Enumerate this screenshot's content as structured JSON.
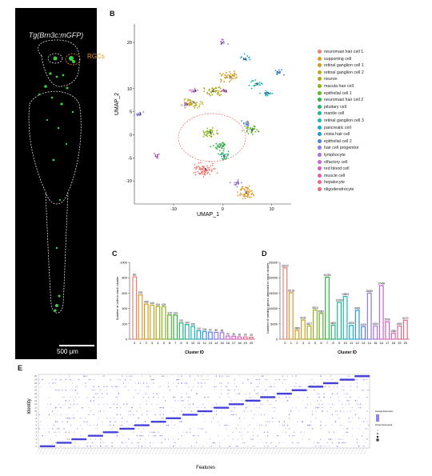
{
  "panel_labels": {
    "a": "A",
    "b": "B",
    "c": "C",
    "d": "D",
    "e": "E"
  },
  "panel_a": {
    "title": "Tg(Brn3c:mGFP)",
    "annotation": "RGCs",
    "scale_bar": "500 μm"
  },
  "chart_data": [
    {
      "type": "scatter",
      "panel": "B",
      "xlabel": "UMAP_1",
      "ylabel": "UMAP_2",
      "xlim": [
        -18,
        14
      ],
      "ylim": [
        -15,
        24
      ],
      "xticks": [
        -10,
        0,
        10
      ],
      "yticks": [
        -10,
        -5,
        0,
        5,
        10,
        20
      ],
      "legend_position": "right",
      "series": [
        {
          "name": "neuromast hair cell 1",
          "color": "#f07f73",
          "cluster_label": "0",
          "center": [
            -3.5,
            -7.5
          ]
        },
        {
          "name": "supporting cell",
          "color": "#e0992a",
          "cluster_label": "1",
          "center": [
            4.8,
            -12.5
          ]
        },
        {
          "name": "retinal ganglion cell 1",
          "color": "#d49a1c",
          "cluster_label": "2",
          "center": [
            1.5,
            12.5
          ]
        },
        {
          "name": "retinal ganglion cell 2",
          "color": "#c4a51e",
          "cluster_label": "3",
          "center": [
            -6.0,
            7.0
          ]
        },
        {
          "name": "neuron",
          "color": "#a9a91a",
          "cluster_label": "4",
          "center": [
            -2.0,
            9.5
          ]
        },
        {
          "name": "macula hair cell",
          "color": "#8ab51d",
          "cluster_label": "5",
          "center": [
            -2.5,
            0.5
          ]
        },
        {
          "name": "epithelial cell 1",
          "color": "#5fb52a",
          "cluster_label": "6",
          "center": [
            6.0,
            1.0
          ]
        },
        {
          "name": "neuromast hair cell 2",
          "color": "#2fb244",
          "cluster_label": "7",
          "center": [
            -0.5,
            -2.5
          ]
        },
        {
          "name": "pituitary cell",
          "color": "#22b56d",
          "cluster_label": "8",
          "center": [
            0.3,
            -4.5
          ]
        },
        {
          "name": "mantle cell",
          "color": "#1eb896",
          "cluster_label": "9",
          "center": [
            7.0,
            11.0
          ]
        },
        {
          "name": "retinal ganglion cell 3",
          "color": "#1bb8b7",
          "cluster_label": "10",
          "center": [
            9.0,
            9.0
          ]
        },
        {
          "name": "pancreatic cell",
          "color": "#1aa9d0",
          "cluster_label": "11",
          "center": [
            4.5,
            16.5
          ]
        },
        {
          "name": "crista hair cell",
          "color": "#2495e0",
          "cluster_label": "12",
          "center": [
            11.5,
            13.5
          ]
        },
        {
          "name": "epithelial cell 2",
          "color": "#4f7fe6",
          "cluster_label": "13",
          "center": [
            5.0,
            2.5
          ]
        },
        {
          "name": "hair cell progenitor",
          "color": "#8a79e8",
          "cluster_label": "14",
          "center": [
            -17.0,
            4.5
          ]
        },
        {
          "name": "lymphocyte",
          "color": "#a96ee6",
          "cluster_label": "15",
          "center": [
            3.0,
            -10.5
          ]
        },
        {
          "name": "olfactory cell",
          "color": "#c763db",
          "cluster_label": "16",
          "center": [
            0.0,
            20.0
          ]
        },
        {
          "name": "red blood cell",
          "color": "#db5ac8",
          "cluster_label": "17",
          "center": [
            -13.5,
            -4.5
          ]
        },
        {
          "name": "muscle cell",
          "color": "#e55daf",
          "cluster_label": "18",
          "center": [
            -5.8,
            9.5
          ]
        },
        {
          "name": "hepatocyte",
          "color": "#eb6392",
          "cluster_label": "19",
          "center": [
            0.5,
            9.5
          ]
        },
        {
          "name": "oligodendrocyte",
          "color": "#e86a7a",
          "cluster_label": "20",
          "center": [
            -7.5,
            6.5
          ]
        }
      ]
    },
    {
      "type": "bar",
      "panel": "C",
      "xlabel": "Cluster ID",
      "ylabel": "Number of cells in each cluster",
      "ylim": [
        0,
        1000
      ],
      "yticks": [
        0,
        200,
        400,
        600,
        800,
        1000
      ],
      "categories": [
        "0",
        "1",
        "2",
        "3",
        "4",
        "5",
        "6",
        "7",
        "8",
        "9",
        "10",
        "11",
        "12",
        "13",
        "14",
        "15",
        "16",
        "17",
        "18",
        "19",
        "20"
      ],
      "values": [
        811,
        578,
        458,
        444,
        424,
        424,
        315,
        314,
        212,
        190,
        166,
        110,
        100,
        92,
        89,
        85,
        42,
        39,
        30,
        29,
        25
      ],
      "colors": [
        "#f07f73",
        "#e0992a",
        "#d49a1c",
        "#c4a51e",
        "#a9a91a",
        "#8ab51d",
        "#5fb52a",
        "#2fb244",
        "#22b56d",
        "#1eb896",
        "#1bb8b7",
        "#1aa9d0",
        "#2495e0",
        "#4f7fe6",
        "#8a79e8",
        "#a96ee6",
        "#c763db",
        "#db5ac8",
        "#e55daf",
        "#eb6392",
        "#e86a7a"
      ]
    },
    {
      "type": "bar",
      "panel": "D",
      "xlabel": "Cluster ID",
      "ylabel": "Number of median genes detected in each cluster",
      "ylim": [
        0,
        25000
      ],
      "yticks": [
        0,
        5000,
        10000,
        15000,
        20000,
        25000
      ],
      "categories": [
        "0",
        "1",
        "2",
        "3",
        "4",
        "5",
        "6",
        "7",
        "8",
        "9",
        "10",
        "11",
        "12",
        "13",
        "14",
        "15",
        "16",
        "17",
        "18",
        "19",
        "20"
      ],
      "values": [
        23222,
        15133,
        2866,
        6232,
        4327,
        9523,
        8381,
        20209,
        4600,
        12000,
        13893,
        4500,
        9400,
        4100,
        15000,
        4300,
        17460,
        5700,
        1980,
        4300,
        6170
      ],
      "labels": [
        "23222",
        "15133",
        "2866",
        "6232",
        "4327",
        "9523",
        "8381",
        "20209",
        "4600",
        "12000",
        "13893",
        "4500",
        "9400",
        "4100",
        "15000",
        "4300",
        "17460",
        "5700",
        "1980",
        "4300",
        "6170"
      ],
      "colors": [
        "#f07f73",
        "#e0992a",
        "#d49a1c",
        "#c4a51e",
        "#a9a91a",
        "#8ab51d",
        "#5fb52a",
        "#2fb244",
        "#22b56d",
        "#1eb896",
        "#1bb8b7",
        "#1aa9d0",
        "#2495e0",
        "#4f7fe6",
        "#8a79e8",
        "#a96ee6",
        "#c763db",
        "#db5ac8",
        "#e55daf",
        "#eb6392",
        "#e86a7a"
      ]
    },
    {
      "type": "scatter",
      "panel": "E",
      "xlabel": "Features",
      "ylabel": "Identity",
      "clusters": 21,
      "legend": {
        "title_1": "Average Expression",
        "title_2": "Percent Expressed"
      },
      "color": "#3a35d8"
    }
  ]
}
